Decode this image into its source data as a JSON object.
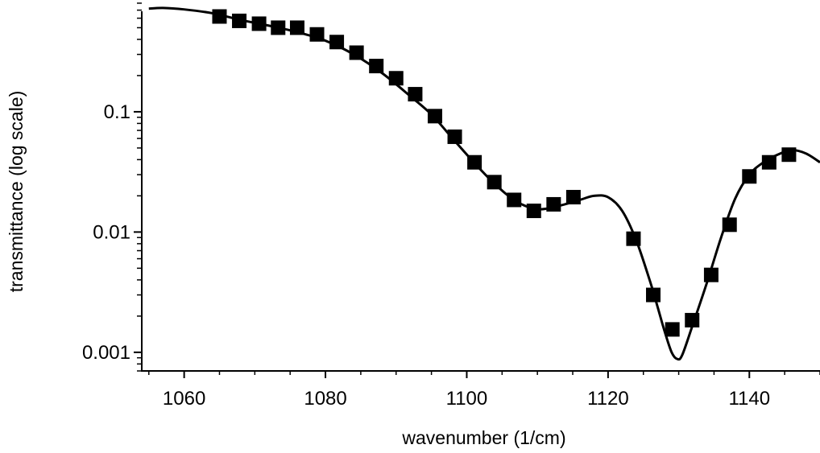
{
  "chart_data": {
    "type": "scatter",
    "xlabel": "wavenumber (1/cm)",
    "ylabel": "transmittance (log scale)",
    "x_ticks": [
      1060,
      1080,
      1100,
      1120,
      1140
    ],
    "x_tick_labels": [
      "1060",
      "1080",
      "1100",
      "1120",
      "1140"
    ],
    "y_ticks": [
      0.001,
      0.01,
      0.1
    ],
    "y_tick_labels": [
      "0.001",
      "0.01",
      "0.1"
    ],
    "xlim": [
      1054,
      1150
    ],
    "ylim": [
      0.0007,
      0.85
    ],
    "y_scale": "log",
    "grid": false,
    "legend": "none",
    "colors": {
      "line": "#000000",
      "markers": "#000000"
    },
    "series": [
      {
        "type": "line",
        "x": [
          1055,
          1057,
          1060,
          1064,
          1068,
          1072,
          1076,
          1080,
          1084,
          1088,
          1092,
          1095,
          1098,
          1101,
          1104,
          1107,
          1110,
          1113,
          1116,
          1118,
          1120,
          1122,
          1124,
          1126,
          1127,
          1128,
          1129,
          1129.8,
          1130.5,
          1132,
          1134,
          1136,
          1138,
          1140,
          1142,
          1144,
          1146,
          1148,
          1150
        ],
        "y": [
          0.72,
          0.73,
          0.71,
          0.66,
          0.58,
          0.52,
          0.46,
          0.39,
          0.3,
          0.21,
          0.135,
          0.095,
          0.06,
          0.038,
          0.025,
          0.018,
          0.0155,
          0.0165,
          0.0185,
          0.02,
          0.0195,
          0.015,
          0.0085,
          0.0038,
          0.0024,
          0.0015,
          0.001,
          0.00088,
          0.00095,
          0.0017,
          0.0038,
          0.009,
          0.019,
          0.03,
          0.038,
          0.044,
          0.048,
          0.045,
          0.038
        ]
      },
      {
        "type": "scatter",
        "x": [
          1065,
          1067.8,
          1070.6,
          1073.3,
          1076,
          1078.8,
          1081.6,
          1084.4,
          1087.2,
          1090,
          1092.7,
          1095.5,
          1098.3,
          1101.1,
          1103.9,
          1106.7,
          1109.5,
          1112.3,
          1115.1,
          1123.6,
          1126.4,
          1129.1,
          1131.9,
          1134.6,
          1137.2,
          1140,
          1142.8,
          1145.6
        ],
        "y": [
          0.62,
          0.57,
          0.54,
          0.5,
          0.5,
          0.44,
          0.38,
          0.31,
          0.24,
          0.19,
          0.14,
          0.092,
          0.062,
          0.038,
          0.026,
          0.0185,
          0.015,
          0.017,
          0.0195,
          0.0088,
          0.003,
          0.00155,
          0.00185,
          0.0044,
          0.0115,
          0.029,
          0.038,
          0.044
        ]
      }
    ]
  }
}
